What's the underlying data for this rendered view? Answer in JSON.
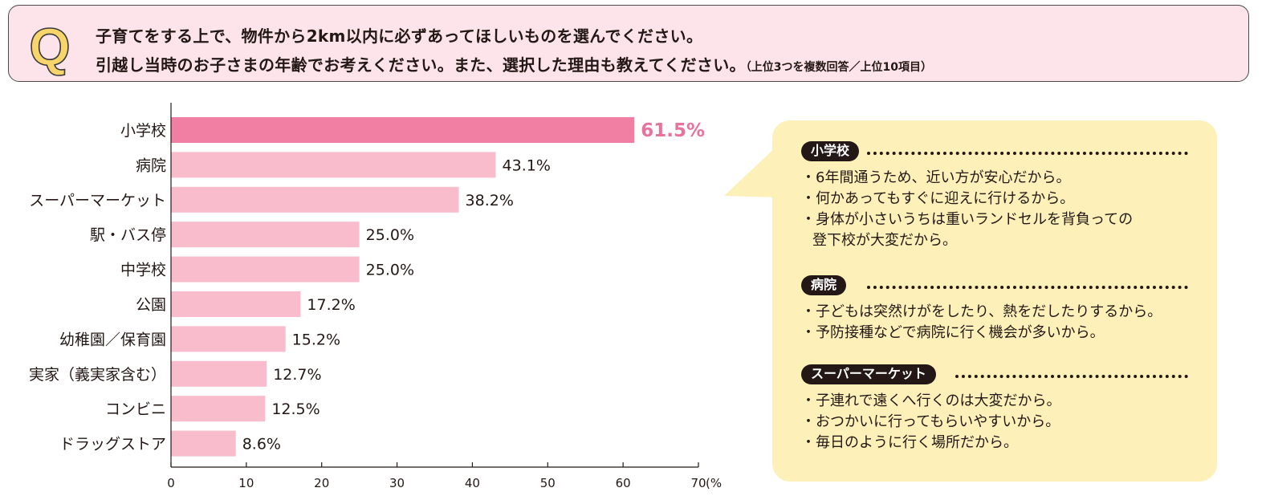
{
  "question": {
    "mark": "Q",
    "line1": "子育てをする上で、物件から2km以内に必ずあってほしいものを選んでください。",
    "line2": "引越し当時のお子さまの年齢でお考えください。また、選択した理由も教えてください。",
    "note": "（上位3つを複数回答／上位10項目）"
  },
  "colors": {
    "highlight_bar": "#f07fa3",
    "bar": "#f8bccd",
    "highlight_label": "#e8739a",
    "panel": "#fdf0b8",
    "question_bg": "#fde4ea",
    "q_mark": "#f7d56a"
  },
  "chart_data": {
    "type": "bar",
    "orientation": "horizontal",
    "categories": [
      "小学校",
      "病院",
      "スーパーマーケット",
      "駅・バス停",
      "中学校",
      "公園",
      "幼稚園／保育園",
      "実家（義実家含む）",
      "コンビニ",
      "ドラッグストア"
    ],
    "values": [
      61.5,
      43.1,
      38.2,
      25.0,
      25.0,
      17.2,
      15.2,
      12.7,
      12.5,
      8.6
    ],
    "value_labels": [
      "61.5%",
      "43.1%",
      "38.2%",
      "25.0%",
      "25.0%",
      "17.2%",
      "15.2%",
      "12.7%",
      "12.5%",
      "8.6%"
    ],
    "highlight_index": 0,
    "xlim": [
      0,
      70
    ],
    "xticks": [
      "0",
      "10",
      "20",
      "30",
      "40",
      "50",
      "60",
      "70"
    ],
    "xunit": "(%)"
  },
  "reasons": [
    {
      "title": "小学校",
      "items": [
        "・6年間通うため、近い方が安心だから。",
        "・何かあってもすぐに迎えに行けるから。",
        "・身体が小さいうちは重いランドセルを背負っての",
        "登下校が大変だから。"
      ]
    },
    {
      "title": "病院",
      "items": [
        "・子どもは突然けがをしたり、熱をだしたりするから。",
        "・予防接種などで病院に行く機会が多いから。"
      ]
    },
    {
      "title": "スーパーマーケット",
      "items": [
        "・子連れで遠くへ行くのは大変だから。",
        "・おつかいに行ってもらいやすいから。",
        "・毎日のように行く場所だから。"
      ]
    }
  ]
}
